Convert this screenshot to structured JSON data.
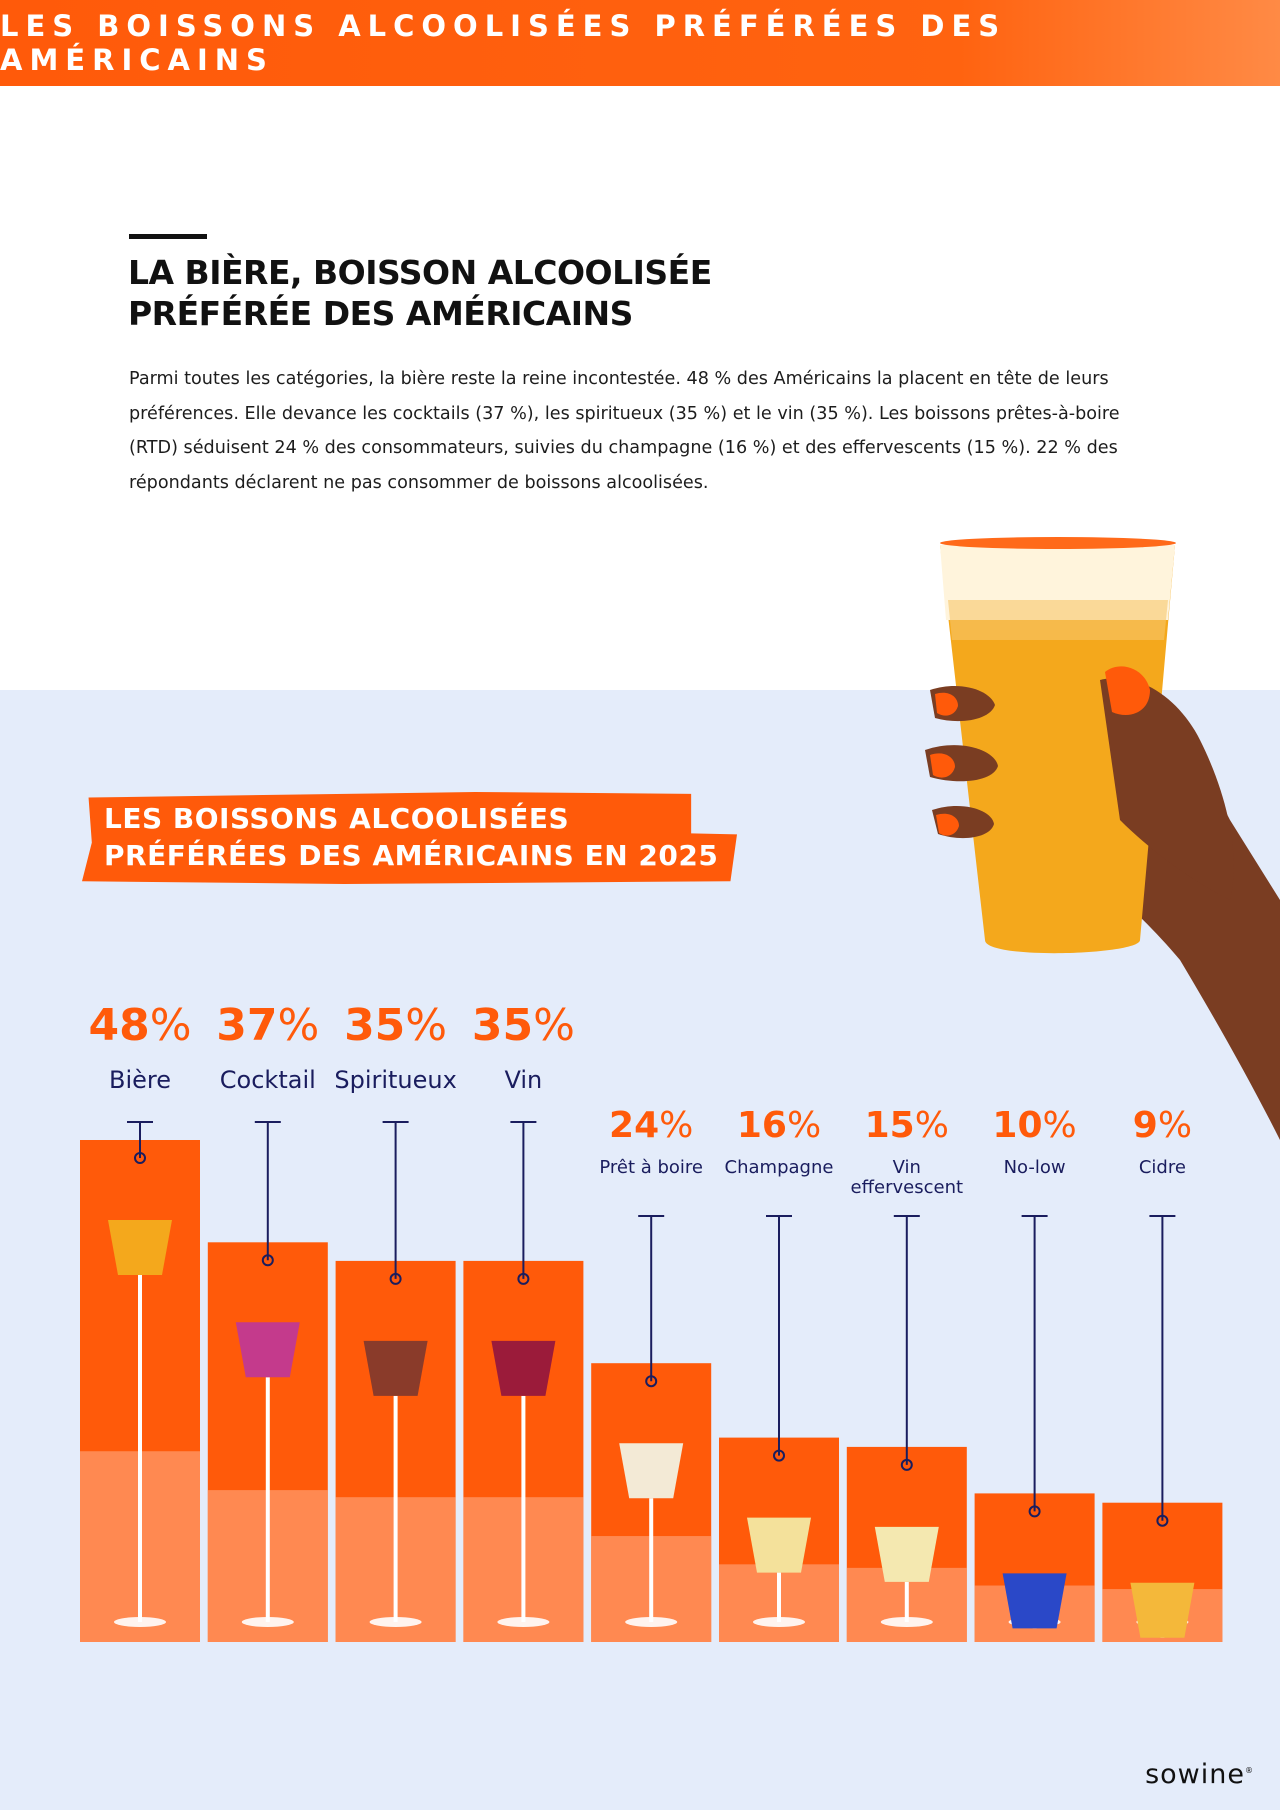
{
  "header": {
    "banner": "LES BOISSONS ALCOOLISÉES PRÉFÉRÉES DES AMÉRICAINS"
  },
  "article": {
    "headline_line1": "LA BIÈRE, BOISSON ALCOOLISÉE",
    "headline_line2": "PRÉFÉRÉE DES AMÉRICAINS",
    "paragraph": "Parmi toutes les catégories, la bière reste la reine incontestée. 48 % des Américains la placent en tête de leurs préférences. Elle devance les cocktails (37 %), les spiritueux (35 %) et le vin (35 %). Les boissons prêtes-à-boire (RTD) séduisent 24 % des consommateurs, suivies du champagne (16 %) et des effervescents (15 %). 22 % des répondants déclarent ne pas consommer de boissons alcoolisées."
  },
  "chart_data": {
    "type": "bar",
    "title_line1": "LES BOISSONS ALCOOLISÉES",
    "title_line2": "PRÉFÉRÉES DES AMÉRICAINS EN 2025",
    "percent_symbol": "%",
    "categories": [
      "Bière",
      "Cocktail",
      "Spiritueux",
      "Vin",
      "Prêt à boire",
      "Champagne",
      "Vin effervescent",
      "No-low",
      "Cidre"
    ],
    "values": [
      48,
      37,
      35,
      35,
      24,
      16,
      15,
      10,
      9
    ],
    "unit": "%",
    "colors": {
      "bar": "#ff5a0a",
      "bar_light": "#ff9a6a",
      "label": "#ff5a0a",
      "category": "#1a1d5e",
      "leader": "#1a1d5e"
    }
  },
  "footer": {
    "logo": "sowine"
  }
}
